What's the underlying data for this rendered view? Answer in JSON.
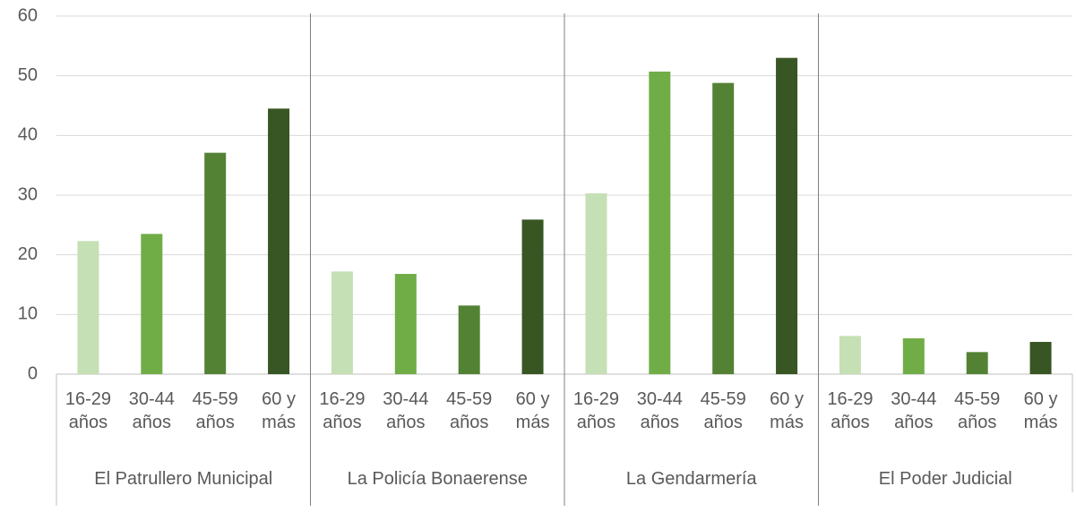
{
  "chart_data": {
    "type": "bar",
    "categories": [
      "El Patrullero Municipal",
      "La Policía Bonaerense",
      "La Gendarmería",
      "El Poder Judicial"
    ],
    "series": [
      {
        "name": "16-29 años",
        "color": "#c5e0b4",
        "values": [
          22.3,
          17.2,
          30.3,
          6.4
        ]
      },
      {
        "name": "30-44 años",
        "color": "#70ad47",
        "values": [
          23.5,
          16.8,
          50.7,
          6.0
        ]
      },
      {
        "name": "45-59 años",
        "color": "#548235",
        "values": [
          37.1,
          11.5,
          48.8,
          3.7
        ]
      },
      {
        "name": "60 y más",
        "color": "#375623",
        "values": [
          44.5,
          25.9,
          53.0,
          5.4
        ]
      }
    ],
    "ylim": [
      0,
      60
    ],
    "yticks": [
      0,
      10,
      20,
      30,
      40,
      50,
      60
    ],
    "grid": true
  }
}
